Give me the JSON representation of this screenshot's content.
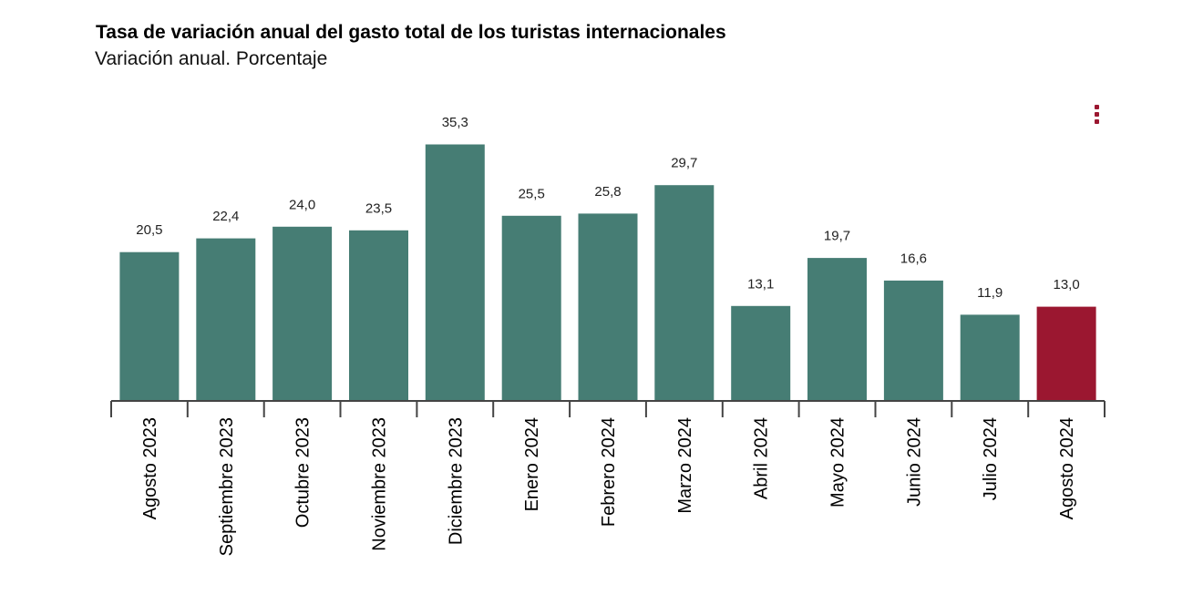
{
  "chart_data": {
    "type": "bar",
    "title": "Tasa de variación anual del gasto total de los turistas internacionales",
    "subtitle": "Variación anual. Porcentaje",
    "categories": [
      "Agosto 2023",
      "Septiembre 2023",
      "Octubre 2023",
      "Noviembre 2023",
      "Diciembre 2023",
      "Enero 2024",
      "Febrero 2024",
      "Marzo 2024",
      "Abril 2024",
      "Mayo 2024",
      "Junio 2024",
      "Julio 2024",
      "Agosto 2024"
    ],
    "values": [
      20.5,
      22.4,
      24.0,
      23.5,
      35.3,
      25.5,
      25.8,
      29.7,
      13.1,
      19.7,
      16.6,
      11.9,
      13.0
    ],
    "value_labels": [
      "20,5",
      "22,4",
      "24,0",
      "23,5",
      "35,3",
      "25,5",
      "25,8",
      "29,7",
      "13,1",
      "19,7",
      "16,6",
      "11,9",
      "13,0"
    ],
    "highlight_index": 12,
    "ylim": [
      0,
      35.3
    ],
    "grid": false,
    "legend": "none",
    "xlabel": "",
    "ylabel": ""
  },
  "colors": {
    "bar": "#467d74",
    "highlight": "#9b1730",
    "axis": "#444444",
    "menu": "#9b1730"
  },
  "icons": {
    "menu": "vertical-ellipsis-icon"
  }
}
